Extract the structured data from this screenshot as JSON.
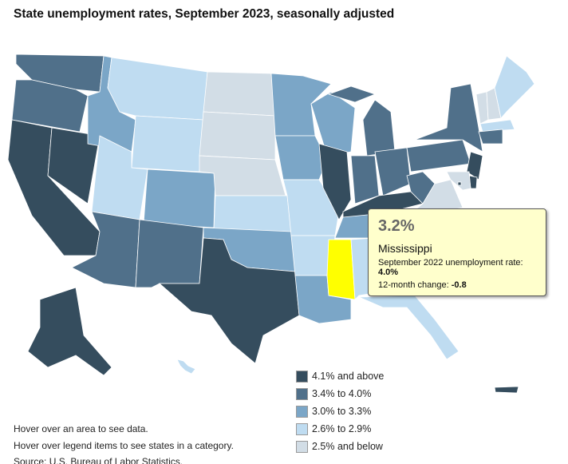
{
  "title": "State unemployment rates, September 2023, seasonally adjusted",
  "legend": [
    {
      "label": "4.1% and above",
      "color": "#354d5e"
    },
    {
      "label": "3.4% to 4.0%",
      "color": "#50708a"
    },
    {
      "label": "3.0% to 3.3%",
      "color": "#7ba6c7"
    },
    {
      "label": "2.6% to 2.9%",
      "color": "#bfdcf1"
    },
    {
      "label": "2.5% and below",
      "color": "#d2dde6"
    }
  ],
  "highlight_color": "#ffff00",
  "map_data": {
    "WA": 1,
    "OR": 1,
    "CA": 0,
    "NV": 0,
    "ID": 2,
    "MT": 3,
    "WY": 3,
    "UT": 3,
    "AZ": 1,
    "CO": 2,
    "NM": 1,
    "ND": 4,
    "SD": 4,
    "NE": 4,
    "KS": 3,
    "OK": 2,
    "TX": 0,
    "MN": 2,
    "IA": 2,
    "MO": 3,
    "AR": 3,
    "LA": 2,
    "MS": "highlight",
    "AL": 3,
    "GA": 3,
    "FL": 3,
    "WI": 2,
    "IL": 0,
    "MI": 1,
    "MIUP": 1,
    "IN": 1,
    "OH": 1,
    "KY": 0,
    "TN": 2,
    "WV": 1,
    "VA": 4,
    "NC": 3,
    "SC": 3,
    "PA": 1,
    "NY": 1,
    "NJ": 0,
    "DE": 0,
    "MD": 4,
    "VT": 4,
    "NH": 4,
    "ME": 3,
    "MA": 3,
    "CT": 1,
    "AK": 0,
    "HI": 3,
    "PR": 0,
    "DC": 0
  },
  "tooltip": {
    "rate": "3.2%",
    "state": "Mississippi",
    "prior_label": "September 2022 unemployment rate: ",
    "prior_value": "4.0%",
    "change_label": "12-month change: ",
    "change_value": "-0.8"
  },
  "notes": [
    "Hover over an area to see data.",
    "Hover over legend items to see states in a category.",
    "Source: U.S. Bureau of Labor Statistics."
  ]
}
